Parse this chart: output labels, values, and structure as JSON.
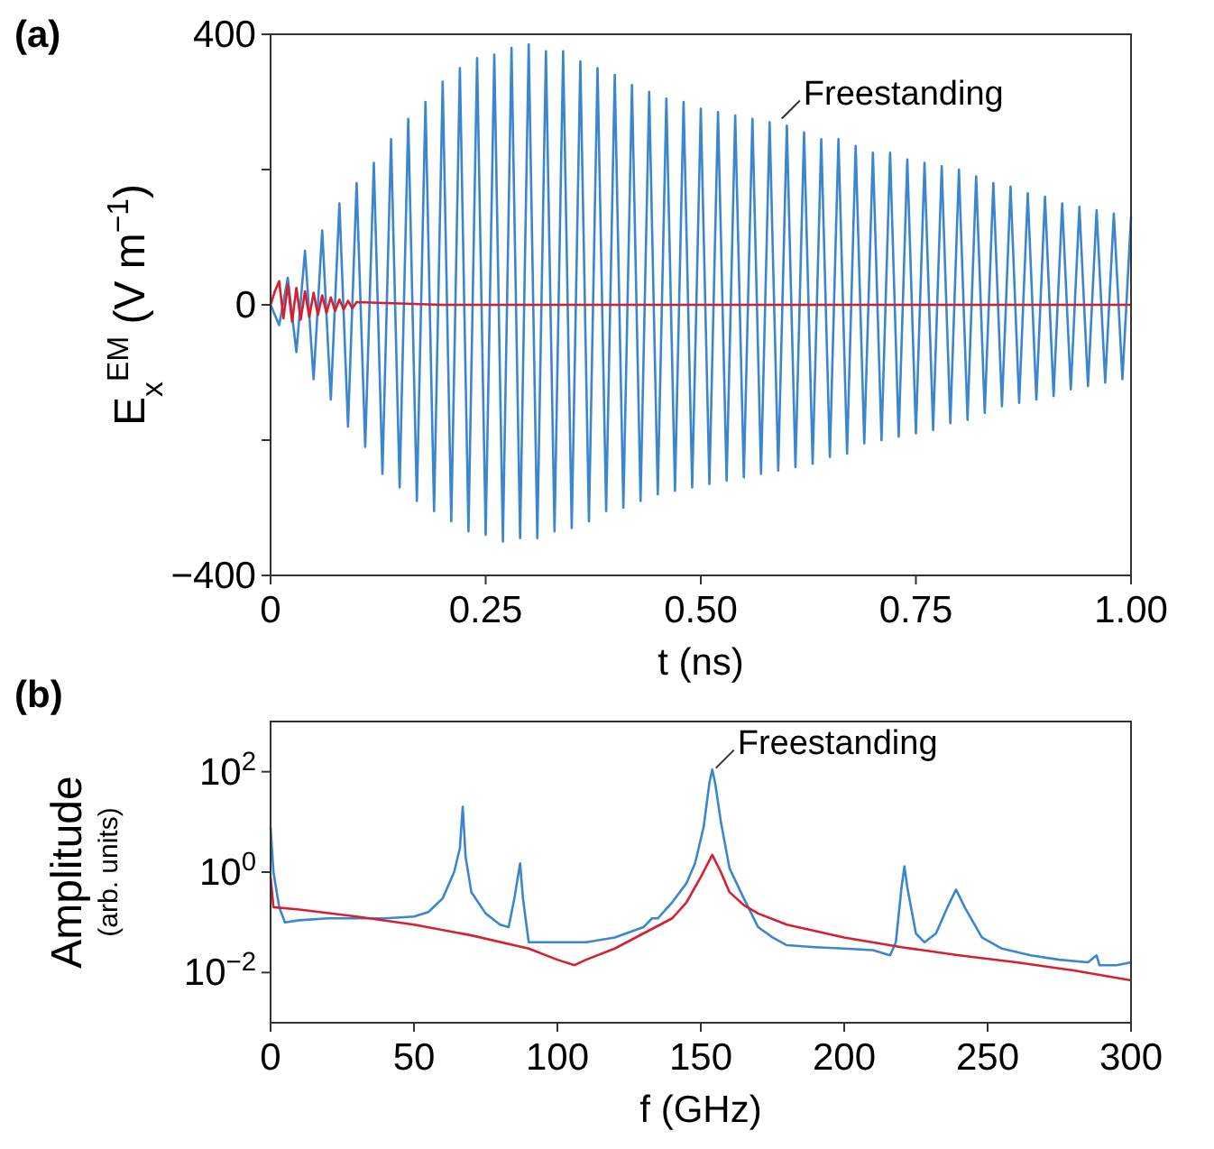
{
  "chart_data": [
    {
      "type": "line",
      "title": "(a)",
      "xlabel": "t (ns)",
      "ylabel": "E$_{x}$$^{EM}$ (V m$^{−1}$)",
      "grid": false,
      "xlim": [
        0,
        1
      ],
      "xticks": [
        0,
        0.25,
        {
          "value": 0.5,
          "label": "0.50"
        },
        {
          "value": 0.75,
          "label": "0.75"
        },
        {
          "value": 1,
          "label": "1.00"
        }
      ],
      "ylim": [
        -400,
        400
      ],
      "yticks": [
        {
          "value": -400,
          "label": "−400"
        },
        {
          "value": -200,
          "label": null
        },
        0,
        {
          "value": 200,
          "label": null
        },
        400
      ],
      "annotations": [
        {
          "text": "Freestanding",
          "x": 0.59,
          "y": 270
        }
      ],
      "series": [
        {
          "color": "#3a87d0",
          "x": [
            0,
            0.01,
            0.02,
            0.03,
            0.04,
            0.05,
            0.06,
            0.07,
            0.08,
            0.09,
            0.1,
            0.11,
            0.12,
            0.13,
            0.14,
            0.15,
            0.16,
            0.17,
            0.18,
            0.19,
            0.2,
            0.21,
            0.22,
            0.23,
            0.24,
            0.25,
            0.26,
            0.27,
            0.28,
            0.29,
            0.3,
            0.31,
            0.32,
            0.33,
            0.34,
            0.35,
            0.36,
            0.37,
            0.38,
            0.39,
            0.4,
            0.41,
            0.42,
            0.43,
            0.44,
            0.45,
            0.46,
            0.47,
            0.48,
            0.49,
            0.5,
            0.51,
            0.52,
            0.53,
            0.54,
            0.55,
            0.56,
            0.57,
            0.58,
            0.59,
            0.6,
            0.61,
            0.62,
            0.63,
            0.64,
            0.65,
            0.66,
            0.67,
            0.68,
            0.69,
            0.7,
            0.71,
            0.72,
            0.73,
            0.74,
            0.75,
            0.76,
            0.77,
            0.78,
            0.79,
            0.8,
            0.81,
            0.82,
            0.83,
            0.84,
            0.85,
            0.86,
            0.87,
            0.88,
            0.89,
            0.9,
            0.91,
            0.92,
            0.93,
            0.94,
            0.95,
            0.96,
            0.97,
            0.98,
            0.99,
            1
          ],
          "values": [
            0,
            -30,
            40,
            -70,
            80,
            -110,
            110,
            -140,
            150,
            -180,
            180,
            -210,
            210,
            -250,
            245,
            -270,
            275,
            -290,
            300,
            -305,
            330,
            -320,
            350,
            -335,
            365,
            -340,
            370,
            -350,
            380,
            -345,
            385,
            -345,
            375,
            -335,
            375,
            -330,
            360,
            -320,
            350,
            -305,
            340,
            -300,
            325,
            -290,
            315,
            -280,
            305,
            -275,
            300,
            -270,
            290,
            -265,
            285,
            -260,
            280,
            -255,
            275,
            -250,
            270,
            -245,
            265,
            -240,
            255,
            -235,
            245,
            -225,
            245,
            -220,
            235,
            -205,
            225,
            -200,
            225,
            -195,
            215,
            -190,
            210,
            -185,
            205,
            -175,
            200,
            -170,
            190,
            -160,
            180,
            -150,
            175,
            -145,
            165,
            -140,
            160,
            -135,
            150,
            -125,
            145,
            -120,
            140,
            -115,
            135,
            -110,
            130
          ]
        },
        {
          "color": "#d62030",
          "x": [
            0,
            0.005,
            0.01,
            0.015,
            0.02,
            0.025,
            0.03,
            0.035,
            0.04,
            0.045,
            0.05,
            0.055,
            0.06,
            0.065,
            0.07,
            0.075,
            0.08,
            0.085,
            0.09,
            0.095,
            0.1,
            0.2,
            1
          ],
          "values": [
            0,
            20,
            35,
            -20,
            30,
            -25,
            25,
            -22,
            20,
            -18,
            18,
            -15,
            14,
            -12,
            11,
            -9,
            8,
            -7,
            6,
            -5,
            4,
            0,
            0
          ]
        }
      ]
    },
    {
      "type": "line",
      "title": "(b)",
      "xlabel": "f (GHz)",
      "ylabel": "Amplitude\n(arb. units)",
      "grid": false,
      "log": "y",
      "xlim": [
        0,
        300
      ],
      "xticks": [
        0,
        50,
        100,
        150,
        200,
        250,
        300
      ],
      "ylim": [
        0.001,
        1000
      ],
      "yticks": [
        {
          "value": 0.01,
          "label": "10$^{−2}$"
        },
        {
          "value": 1,
          "label": "10$^{0}$"
        },
        {
          "value": 100,
          "label": "10$^{2}$"
        }
      ],
      "annotations": [
        {
          "text": "Freestanding",
          "x": 154,
          "y": 100
        }
      ],
      "series": [
        {
          "color": "#3a87d0",
          "x": [
            0,
            1,
            3,
            5,
            10,
            20,
            30,
            40,
            50,
            55,
            60,
            64,
            66,
            67,
            68,
            70,
            75,
            80,
            83,
            85,
            87,
            88,
            90,
            95,
            100,
            110,
            120,
            130,
            133,
            135,
            140,
            145,
            148,
            151,
            153,
            154,
            155,
            157,
            160,
            165,
            170,
            175,
            180,
            190,
            200,
            210,
            216,
            218,
            220,
            221,
            222,
            225,
            228,
            232,
            236,
            239,
            242,
            248,
            255,
            265,
            275,
            285,
            288,
            289,
            295,
            300
          ],
          "values": [
            8,
            1,
            0.2,
            0.1,
            0.11,
            0.12,
            0.12,
            0.12,
            0.13,
            0.16,
            0.3,
            1,
            3,
            20,
            2,
            0.4,
            0.15,
            0.09,
            0.08,
            0.3,
            1.5,
            0.3,
            0.04,
            0.04,
            0.04,
            0.04,
            0.05,
            0.08,
            0.12,
            0.12,
            0.25,
            0.6,
            1.5,
            8,
            60,
            110,
            60,
            10,
            1.2,
            0.3,
            0.08,
            0.05,
            0.035,
            0.032,
            0.03,
            0.028,
            0.022,
            0.04,
            0.5,
            1.3,
            0.5,
            0.06,
            0.04,
            0.06,
            0.2,
            0.45,
            0.2,
            0.05,
            0.03,
            0.022,
            0.018,
            0.016,
            0.022,
            0.014,
            0.014,
            0.016
          ]
        },
        {
          "color": "#d62030",
          "x": [
            0,
            1,
            10,
            30,
            50,
            70,
            90,
            100,
            106,
            110,
            120,
            130,
            140,
            145,
            150,
            154,
            157,
            160,
            165,
            170,
            180,
            200,
            220,
            240,
            260,
            280,
            300
          ],
          "values": [
            0.8,
            0.2,
            0.18,
            0.13,
            0.09,
            0.055,
            0.03,
            0.018,
            0.014,
            0.018,
            0.03,
            0.06,
            0.12,
            0.25,
            0.8,
            2.2,
            1,
            0.4,
            0.22,
            0.15,
            0.09,
            0.05,
            0.032,
            0.022,
            0.016,
            0.011,
            0.007
          ]
        }
      ]
    }
  ]
}
